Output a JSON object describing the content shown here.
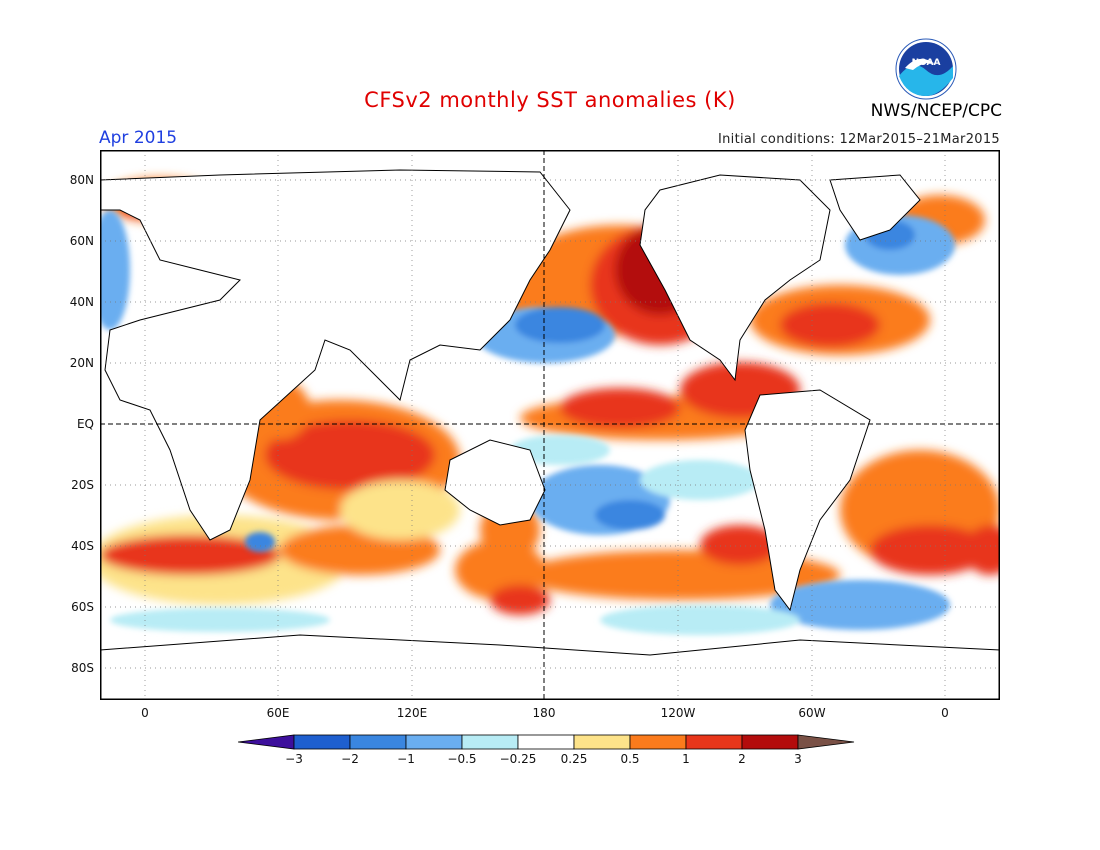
{
  "header": {
    "title": "CFSv2 monthly SST anomalies (K)",
    "organization": "NWS/NCEP/CPC",
    "month": "Apr 2015",
    "initial_conditions": "Initial conditions: 12Mar2015–21Mar2015"
  },
  "logo": {
    "name": "noaa-logo",
    "text": "NOAA"
  },
  "map": {
    "lat_labels": [
      "80N",
      "60N",
      "40N",
      "20N",
      "EQ",
      "20S",
      "40S",
      "60S",
      "80S"
    ],
    "lon_labels": [
      "0",
      "60E",
      "120E",
      "180",
      "120W",
      "60W",
      "0"
    ],
    "colorbar": {
      "labels": [
        "−3",
        "−2",
        "−1",
        "−0.5",
        "−0.25",
        "0.25",
        "0.5",
        "1",
        "2",
        "3"
      ],
      "colors": [
        "#3d0f9c",
        "#1e5fcf",
        "#3a86e0",
        "#6aaef0",
        "#b8ecf5",
        "#ffffff",
        "#fde38a",
        "#fb7b1c",
        "#e8361a",
        "#b30c0c",
        "#7a5146"
      ]
    }
  },
  "colors": {
    "title": "#e00000",
    "month": "#1f3fe0",
    "land": "#ffffff",
    "coast": "#000000"
  }
}
